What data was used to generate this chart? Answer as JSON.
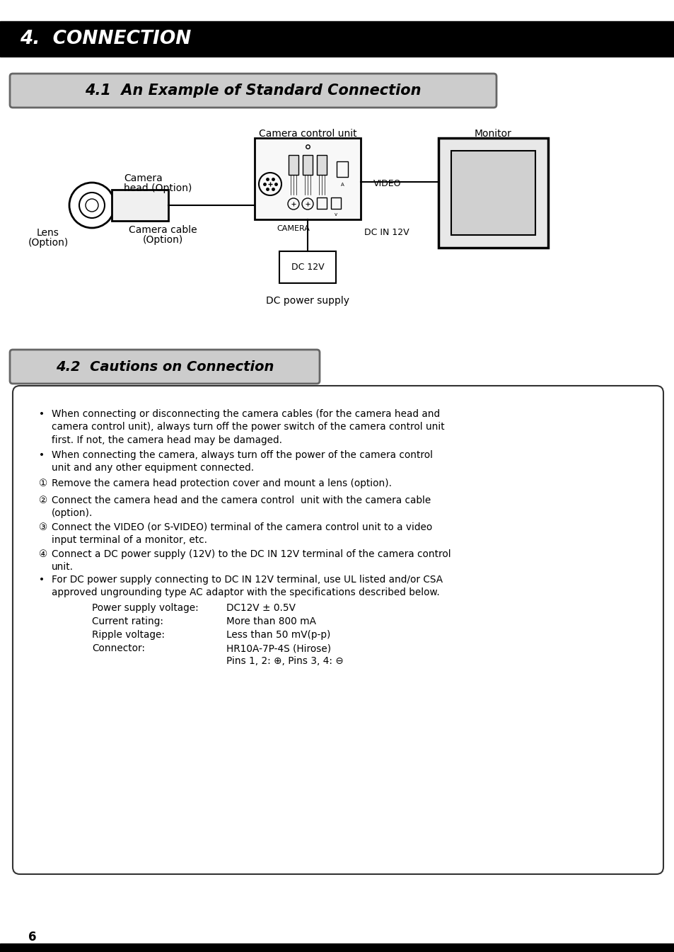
{
  "page_bg": "#ffffff",
  "header_bg": "#000000",
  "header_text": "4.  CONNECTION",
  "header_text_color": "#ffffff",
  "section1_title": "4.1  An Example of Standard Connection",
  "section1_title_bg": "#bbbbbb",
  "section1_title_color": "#000000",
  "section2_title": "4.2  Cautions on Connection",
  "section2_title_bg": "#bbbbbb",
  "section2_title_color": "#000000",
  "page_number": "6",
  "bullet_points": [
    "When connecting or disconnecting the camera cables (for the camera head and\ncamera control unit), always turn off the power switch of the camera control unit\nfirst. If not, the camera head may be damaged.",
    "When connecting the camera, always turn off the power of the camera control\nunit and any other equipment connected."
  ],
  "numbered_points": [
    "Remove the camera head protection cover and mount a lens (option).",
    "Connect the camera head and the camera control  unit with the camera cable\n(option).",
    "Connect the VIDEO (or S-VIDEO) terminal of the camera control unit to a video\ninput terminal of a monitor, etc.",
    "Connect a DC power supply (12V) to the DC IN 12V terminal of the camera control\nunit."
  ],
  "last_bullet": "For DC power supply connecting to DC IN 12V terminal, use UL listed and/or CSA\napproved ungrounding type AC adaptor with the specifications described below.",
  "spec_labels": [
    "Power supply voltage:",
    "Current rating:",
    "Ripple voltage:",
    "Connector:"
  ],
  "spec_values": [
    "DC12V ± 0.5V",
    "More than 800 mA",
    "Less than 50 mV(p-p)",
    "HR10A-7P-4S (Hirose)\nPins 1, 2: ⊕, Pins 3, 4: ⊖"
  ]
}
